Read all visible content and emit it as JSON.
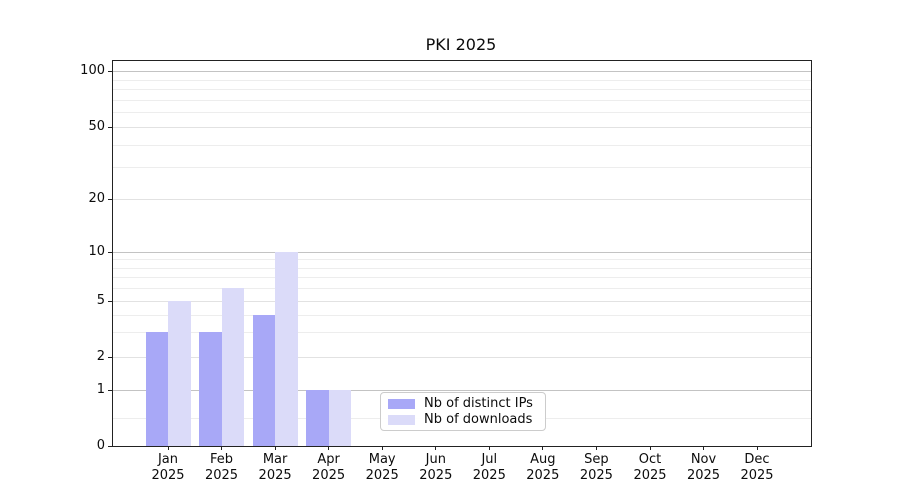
{
  "chart_data": {
    "type": "bar",
    "title": "PKI 2025",
    "categories": [
      "Jan",
      "Feb",
      "Mar",
      "Apr",
      "May",
      "Jun",
      "Jul",
      "Aug",
      "Sep",
      "Oct",
      "Nov",
      "Dec"
    ],
    "year_label": "2025",
    "series": [
      {
        "name": "Nb of distinct IPs",
        "color": "#a8a8f7",
        "values": [
          3,
          3,
          4,
          1,
          0,
          0,
          0,
          0,
          0,
          0,
          0,
          0
        ]
      },
      {
        "name": "Nb of downloads",
        "color": "#dbdbf9",
        "values": [
          5,
          6,
          10,
          1,
          0,
          0,
          0,
          0,
          0,
          0,
          0,
          0
        ]
      }
    ],
    "y_axis": {
      "scale": "symlog",
      "tick_labels": [
        0,
        1,
        2,
        5,
        10,
        20,
        50,
        100
      ],
      "decade_lines": [
        1,
        10,
        100
      ],
      "labeled_mid_lines": [
        2,
        5,
        20,
        50
      ],
      "minor_gridlines": [
        0.5,
        3,
        4,
        6,
        7,
        8,
        9,
        30,
        40,
        60,
        70,
        80,
        90
      ],
      "ylim": [
        0,
        115
      ]
    },
    "legend": {
      "entries": [
        "Nb of distinct IPs",
        "Nb of downloads"
      ],
      "position": "lower center"
    },
    "grid": "on"
  },
  "colors": {
    "bar_distinct_ips": "#a8a8f7",
    "bar_downloads": "#dbdbf9",
    "grid_decade": "#c3c3c3",
    "grid_mid": "#e2e2e2",
    "grid_minor": "#ededed",
    "axis_spine": "#222222",
    "text": "#0c0c0c",
    "legend_border": "#cccccc",
    "background": "#ffffff"
  }
}
